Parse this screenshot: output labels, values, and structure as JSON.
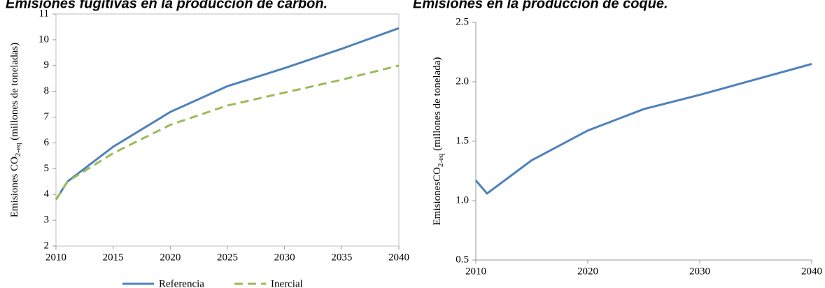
{
  "chart_data": [
    {
      "type": "line",
      "title": "Emisiones fugitivas en la producción de carbón.",
      "ylabel": {
        "main": "Emisiones CO",
        "sub": "2-eq",
        "rest": " (millones de toneladas)"
      },
      "x": [
        2010,
        2011,
        2015,
        2020,
        2025,
        2030,
        2035,
        2040
      ],
      "xlim": [
        2010,
        2040
      ],
      "xticks": [
        2010,
        2015,
        2020,
        2025,
        2030,
        2035,
        2040
      ],
      "ylim": [
        2,
        11
      ],
      "yticks": [
        2,
        3,
        4,
        5,
        6,
        7,
        8,
        9,
        10,
        11
      ],
      "series": [
        {
          "name": "Referencia",
          "color": "#4f81bd",
          "dash": false,
          "values": [
            3.8,
            4.5,
            5.85,
            7.2,
            8.2,
            8.9,
            9.65,
            10.45
          ]
        },
        {
          "name": "Inercial",
          "color": "#9bbb59",
          "dash": true,
          "values": [
            3.8,
            4.5,
            5.6,
            6.7,
            7.45,
            7.95,
            8.45,
            9.0
          ]
        }
      ],
      "legend": "bottom"
    },
    {
      "type": "line",
      "title": "Emisiones en la producción de coque.",
      "ylabel": {
        "main": "EmisionesCO",
        "sub": "2-eq",
        "rest": "  (millones de tonelada)"
      },
      "x": [
        2010,
        2011,
        2015,
        2020,
        2025,
        2030,
        2035,
        2040
      ],
      "xlim": [
        2010,
        2040
      ],
      "xticks": [
        2010,
        2020,
        2030,
        2040
      ],
      "ylim": [
        0.5,
        2.5
      ],
      "yticks": [
        0.5,
        {
          "value": 1,
          "label": "1.0"
        },
        1.5,
        {
          "value": 2,
          "label": "2.0"
        },
        2.5
      ],
      "series": [
        {
          "color": "#4f81bd",
          "dash": false,
          "values": [
            1.17,
            1.06,
            1.34,
            1.59,
            1.77,
            1.89,
            2.02,
            2.15
          ]
        }
      ]
    }
  ]
}
